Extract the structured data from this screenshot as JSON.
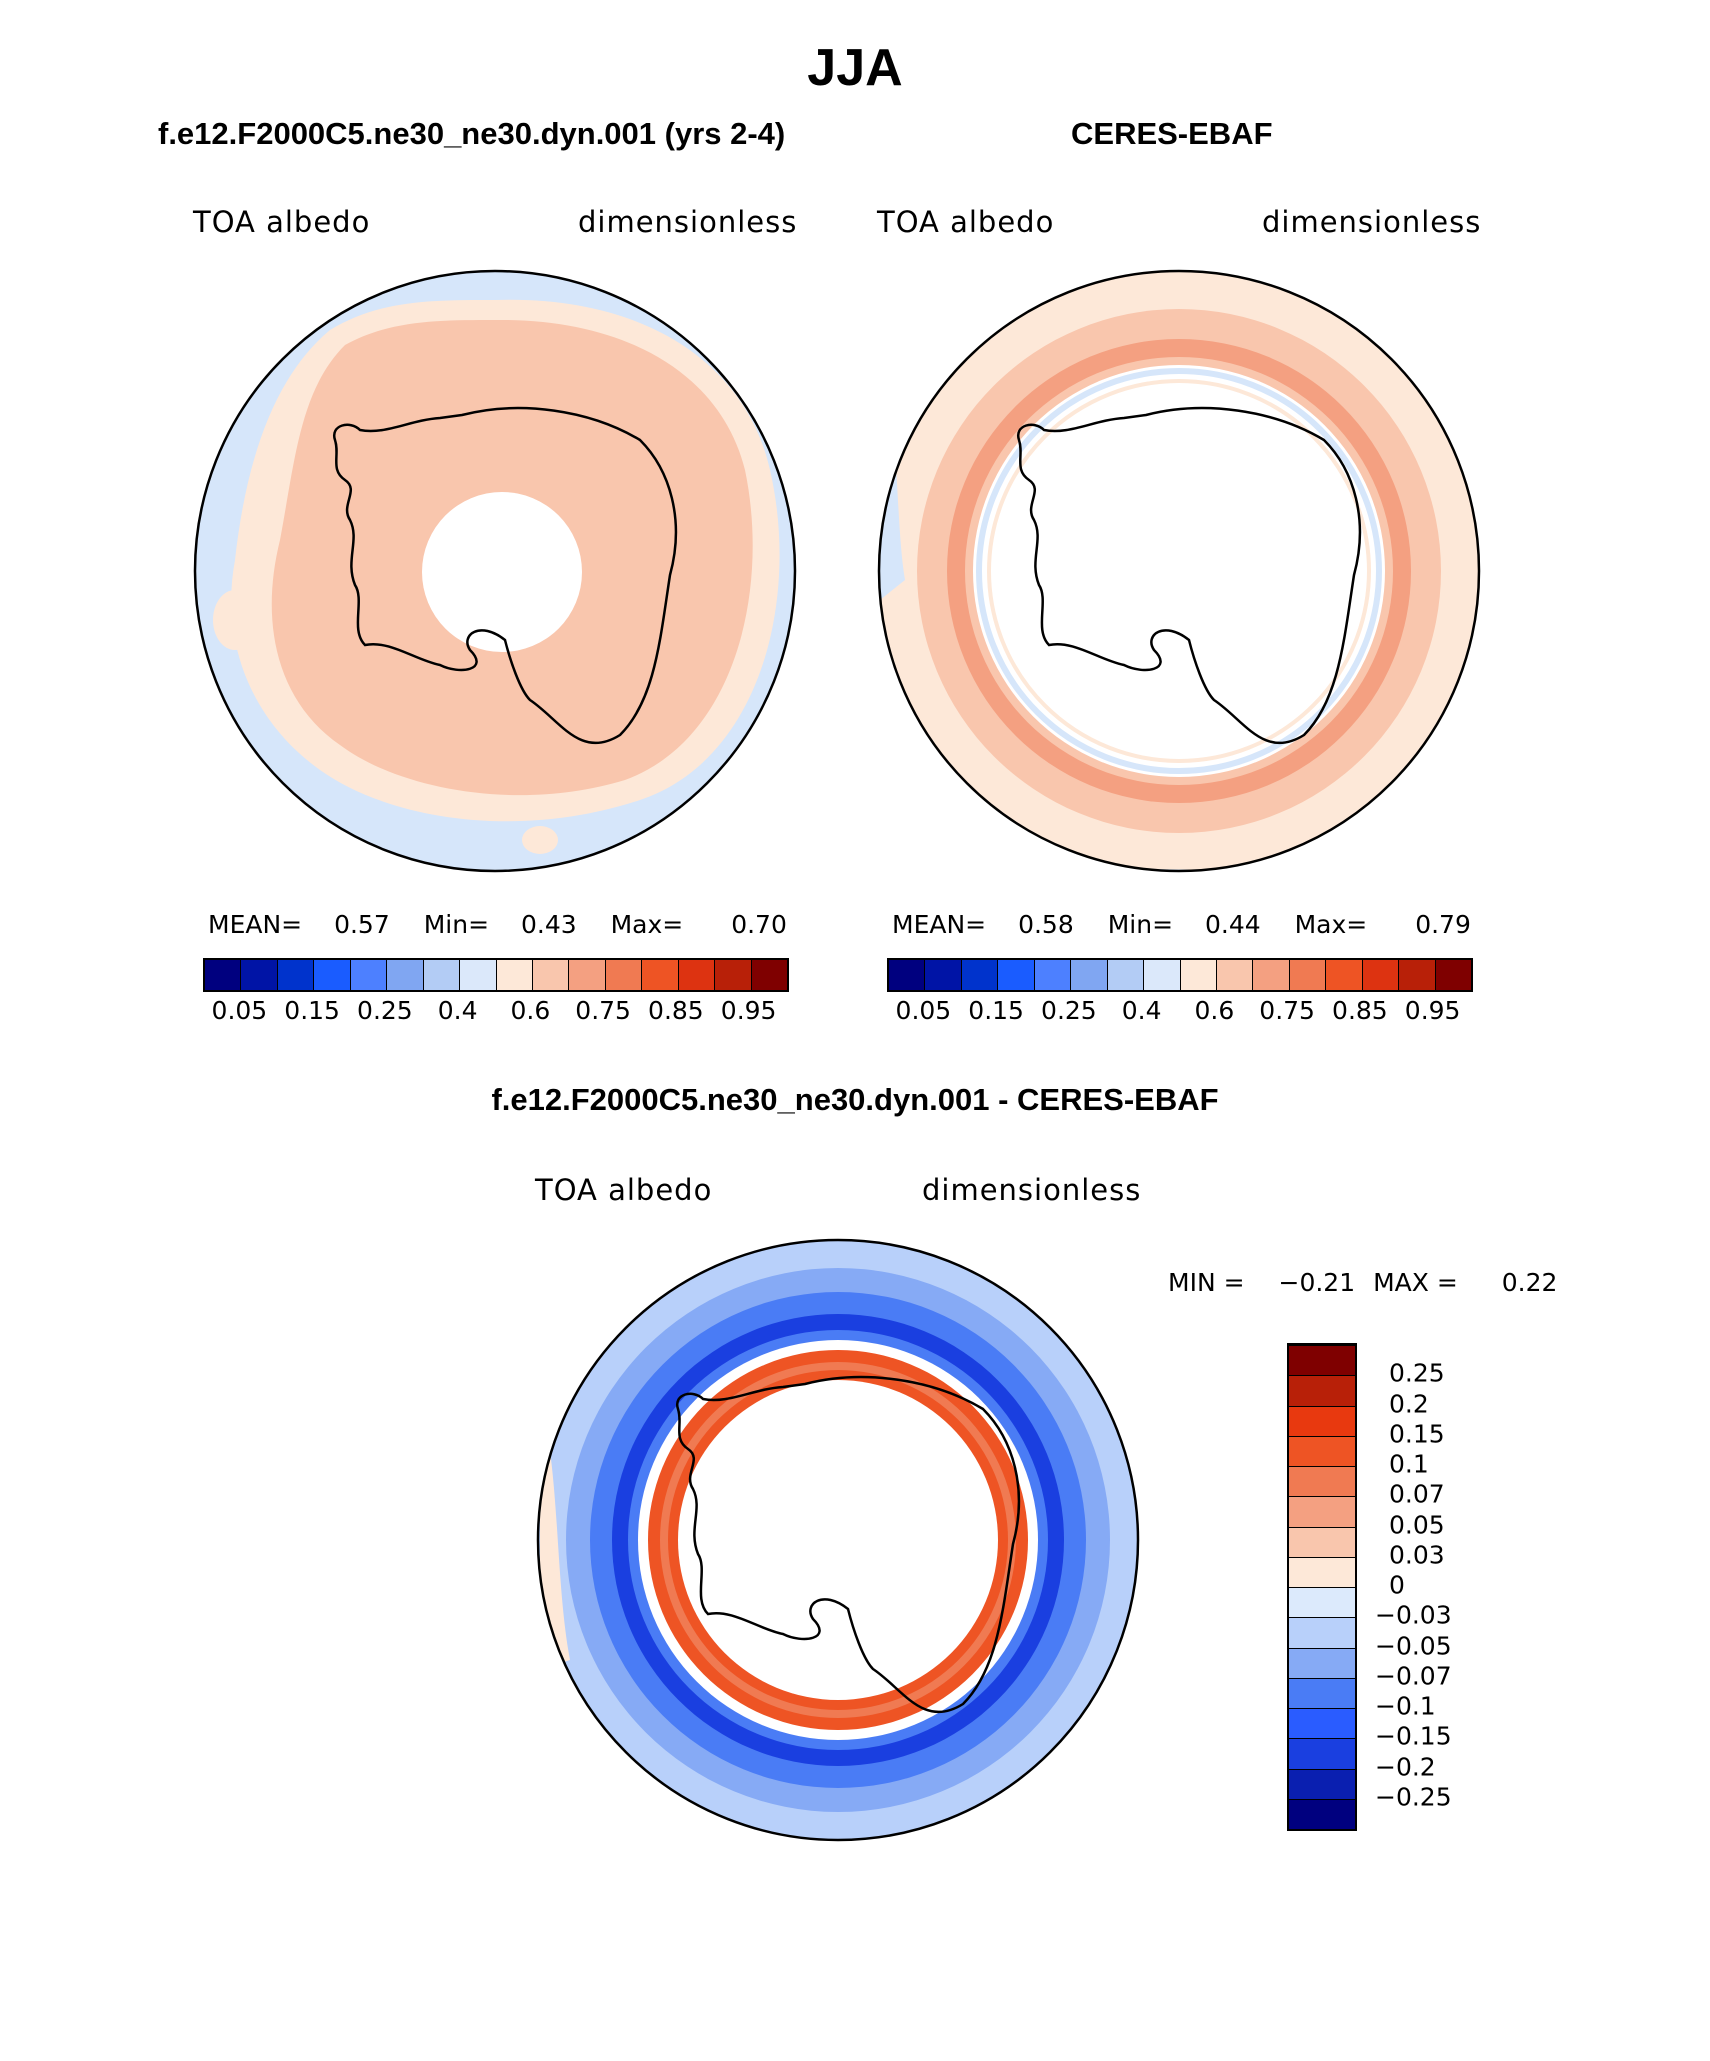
{
  "page": {
    "title": "JJA"
  },
  "panels": [
    {
      "subtitle": "f.e12.F2000C5.ne30_ne30.dyn.001 (yrs 2-4)",
      "left_label": "TOA albedo",
      "right_label": "dimensionless",
      "stats": {
        "mean_label": "MEAN=",
        "mean": "0.57",
        "min_label": "Min=",
        "min": "0.43",
        "max_label": "Max=",
        "max": "0.70"
      }
    },
    {
      "subtitle": "CERES-EBAF",
      "left_label": "TOA albedo",
      "right_label": "dimensionless",
      "stats": {
        "mean_label": "MEAN=",
        "mean": "0.58",
        "min_label": "Min=",
        "min": "0.44",
        "max_label": "Max=",
        "max": "0.79"
      }
    },
    {
      "subtitle": "f.e12.F2000C5.ne30_ne30.dyn.001 - CERES-EBAF",
      "left_label": "TOA albedo",
      "right_label": "dimensionless",
      "stats": {
        "min_label": "MIN =",
        "min": "−0.21",
        "max_label": "MAX =",
        "max": "0.22"
      }
    }
  ],
  "colorbar_top": {
    "colors": [
      "#00007f",
      "#0014a6",
      "#0033cc",
      "#1a5cff",
      "#4d80ff",
      "#80a6f2",
      "#b3ccf5",
      "#dbe8fa",
      "#fde8d8",
      "#f9c6ad",
      "#f4a081",
      "#f07a52",
      "#ee5424",
      "#dd3311",
      "#b82008",
      "#7f0000"
    ],
    "tick_labels": [
      "0.05",
      "0.15",
      "0.25",
      "0.4",
      "0.6",
      "0.75",
      "0.85",
      "0.95"
    ]
  },
  "colorbar_diff": {
    "colors": [
      "#00007f",
      "#0a1fb0",
      "#1a3fe0",
      "#2a5cff",
      "#4a7cf5",
      "#86aaf5",
      "#b8d0fa",
      "#dceafc",
      "#fde8d8",
      "#f9c6ad",
      "#f4a081",
      "#f07a52",
      "#ee5424",
      "#e8390f",
      "#b82008",
      "#7f0000"
    ],
    "tick_labels": [
      "−0.25",
      "−0.2",
      "−0.15",
      "−0.1",
      "−0.07",
      "−0.05",
      "−0.03",
      "0",
      "0.03",
      "0.05",
      "0.07",
      "0.1",
      "0.15",
      "0.2",
      "0.25"
    ]
  },
  "map_colors": {
    "blue_light": "#d6e6fa",
    "peach_light": "#fde8d8",
    "salmon": "#f9c6ad",
    "orange": "#f4a081",
    "orange_red": "#ee5424",
    "diff_blue_pale": "#b8d0fa",
    "diff_blue_mid": "#4a7cf5",
    "diff_blue_deep": "#1a3fe0"
  }
}
